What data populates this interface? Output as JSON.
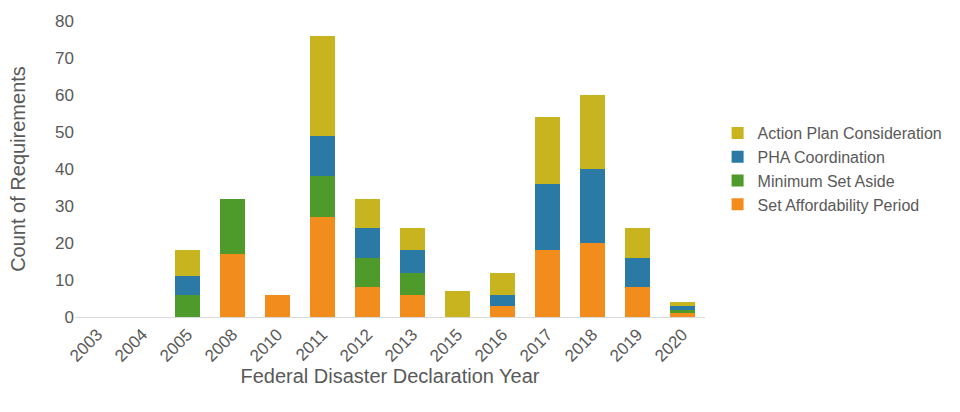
{
  "chart_data": {
    "type": "bar",
    "x_label": "Federal Disaster Declaration Year",
    "y_label": "Count of Requirements",
    "categories": [
      "2003",
      "2004",
      "2005",
      "2008",
      "2010",
      "2011",
      "2012",
      "2013",
      "2015",
      "2016",
      "2017",
      "2018",
      "2019",
      "2020"
    ],
    "series": [
      {
        "name": "Set Affordability Period",
        "color": "#f28c1c",
        "values": [
          0,
          0,
          0,
          17,
          6,
          27,
          8,
          6,
          0,
          3,
          18,
          20,
          8,
          1
        ]
      },
      {
        "name": "Minimum Set Aside",
        "color": "#4e9a2a",
        "values": [
          0,
          0,
          6,
          15,
          0,
          11,
          8,
          6,
          0,
          0,
          0,
          0,
          0,
          1
        ]
      },
      {
        "name": "PHA Coordination",
        "color": "#2b7aa6",
        "values": [
          0,
          0,
          5,
          0,
          0,
          11,
          8,
          6,
          0,
          3,
          18,
          20,
          8,
          1
        ]
      },
      {
        "name": "Action Plan Consideration",
        "color": "#c8b41e",
        "values": [
          0,
          0,
          7,
          0,
          0,
          27,
          8,
          6,
          7,
          6,
          18,
          20,
          8,
          1
        ]
      }
    ],
    "ylim": [
      0,
      80
    ],
    "yticks": [
      0,
      10,
      20,
      30,
      40,
      50,
      60,
      70,
      80
    ],
    "stacked": true,
    "grid": false,
    "legend": "right"
  }
}
